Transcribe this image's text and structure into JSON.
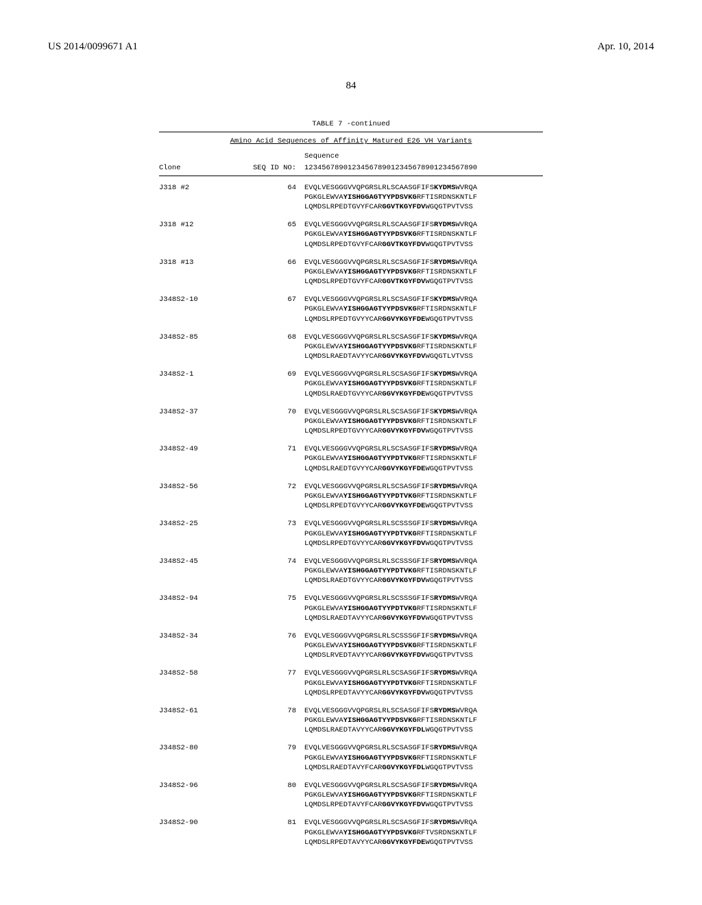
{
  "header": {
    "publication_number": "US 2014/0099671 A1",
    "publication_date": "Apr. 10, 2014",
    "page_number": "84"
  },
  "table": {
    "caption": "TABLE 7 -continued",
    "subtitle": "Amino Acid Sequences of Affinity Matured E26 VH Variants",
    "columns": {
      "clone": "Clone",
      "seqid": "SEQ ID NO:",
      "seq_label": "Sequence",
      "ruler": "1234567890123456789012345678901234567890"
    },
    "entries": [
      {
        "clone": "J318 #2",
        "seqid": "64",
        "lines": [
          {
            "pre": "EVQLVESGGGVVQPGRSLRLSCAASGFIFS",
            "bold": "KYDMS",
            "post": "WVRQA"
          },
          {
            "pre": "PGKGLEWVA",
            "bold": "YISHGGAGTYYPDSVKG",
            "post": "RFTISRDNSKNTLF"
          },
          {
            "pre": "LQMDSLRPEDTGVYFCAR",
            "bold": "GGVTKGYFDV",
            "post": "WGQGTPVTVSS"
          }
        ]
      },
      {
        "clone": "J318 #12",
        "seqid": "65",
        "lines": [
          {
            "pre": "EVQLVESGGGVVQPGRSLRLSCAASGFIFS",
            "bold": "RYDMS",
            "post": "WVRQA"
          },
          {
            "pre": "PGKGLEWVA",
            "bold": "YISHGGAGTYYPDSVKG",
            "post": "RFTISRDNSKNTLF"
          },
          {
            "pre": "LQMDSLRPEDTGVYFCAR",
            "bold": "GGVTKGYFDV",
            "post": "WGQGTPVTVSS"
          }
        ]
      },
      {
        "clone": "J318 #13",
        "seqid": "66",
        "lines": [
          {
            "pre": "EVQLVESGGGVVQPGRSLRLSCSASGFIFS",
            "bold": "RYDMS",
            "post": "WVRQA"
          },
          {
            "pre": "PGKGLEWVA",
            "bold": "YISHGGAGTYYPDSVKG",
            "post": "RFTISRDNSKNTLF"
          },
          {
            "pre": "LQMDSLRPEDTGVYFCAR",
            "bold": "GGVTKGYFDV",
            "post": "WGQGTPVTVSS"
          }
        ]
      },
      {
        "clone": "J348S2-10",
        "seqid": "67",
        "lines": [
          {
            "pre": "EVQLVESGGGVVQPGRSLRLSCSASGFIFS",
            "bold": "KYDMS",
            "post": "WVRQA"
          },
          {
            "pre": "PGKGLEWVA",
            "bold": "YISHGGAGTYYPDSVKG",
            "post": "RFTISRDNSKNTLF"
          },
          {
            "pre": "LQMDSLRPEDTGVYYCAR",
            "bold": "GGVYKGYFDE",
            "post": "WGQGTPVTVSS"
          }
        ]
      },
      {
        "clone": "J348S2-85",
        "seqid": "68",
        "lines": [
          {
            "pre": "EVQLVESGGGVVQPGRSLRLSCSASGFIFS",
            "bold": "KYDMS",
            "post": "WVRQA"
          },
          {
            "pre": "PGKGLEWVA",
            "bold": "YISHGGAGTYYPDSVKG",
            "post": "RFTISRDNSKNTLF"
          },
          {
            "pre": "LQMDSLRAEDTAVYYCAR",
            "bold": "GGVYKGYFDV",
            "post": "WGQGTLVTVSS"
          }
        ]
      },
      {
        "clone": "J348S2-1",
        "seqid": "69",
        "lines": [
          {
            "pre": "EVQLVESGGGVVQPGRSLRLSCSASGFIFS",
            "bold": "KYDMS",
            "post": "WVRQA"
          },
          {
            "pre": "PGKGLEWVA",
            "bold": "YISHGGAGTYYPDSVKG",
            "post": "RFTISRDNSKNTLF"
          },
          {
            "pre": "LQMDSLRAEDTGVYYCAR",
            "bold": "GGVYKGYFDE",
            "post": "WGQGTPVTVSS"
          }
        ]
      },
      {
        "clone": "J348S2-37",
        "seqid": "70",
        "lines": [
          {
            "pre": "EVQLVESGGGVVQPGRSLRLSCSASGFIFS",
            "bold": "KYDMS",
            "post": "WVRQA"
          },
          {
            "pre": "PGKGLEWVA",
            "bold": "YISHGGAGTYYPDSVKG",
            "post": "RFTISRDNSKNTLF"
          },
          {
            "pre": "LQMDSLRPEDTGVYYCAR",
            "bold": "GGVYKGYFDV",
            "post": "WGQGTPVTVSS"
          }
        ]
      },
      {
        "clone": "J348S2-49",
        "seqid": "71",
        "lines": [
          {
            "pre": "EVQLVESGGGVVQPGRSLRLSCSASGFIFS",
            "bold": "RYDMS",
            "post": "WVRQA"
          },
          {
            "pre": "PGKGLEWVA",
            "bold": "YISHGGAGTYYPDTVKG",
            "post": "RFTISRDNSKNTLF"
          },
          {
            "pre": "LQMDSLRAEDTGVYYCAR",
            "bold": "GGVYKGYFDE",
            "post": "WGQGTPVTVSS"
          }
        ]
      },
      {
        "clone": "J348S2-56",
        "seqid": "72",
        "lines": [
          {
            "pre": "EVQLVESGGGVVQPGRSLRLSCSASGFIFS",
            "bold": "RYDMS",
            "post": "WVRQA"
          },
          {
            "pre": "PGKGLEWVA",
            "bold": "YISHGGAGTYYPDTVKG",
            "post": "RFTISRDNSKNTLF"
          },
          {
            "pre": "LQMDSLRPEDTGVYYCAR",
            "bold": "GGVYKGYFDE",
            "post": "WGQGTPVTVSS"
          }
        ]
      },
      {
        "clone": "J348S2-25",
        "seqid": "73",
        "lines": [
          {
            "pre": "EVQLVESGGGVVQPGRSLRLSCSSSGFIFS",
            "bold": "RYDMS",
            "post": "WVRQA"
          },
          {
            "pre": "PGKGLEWVA",
            "bold": "YISHGGAGTYYPDTVKG",
            "post": "RFTISRDNSKNTLF"
          },
          {
            "pre": "LQMDSLRPEDTGVYYCAR",
            "bold": "GGVYKGYFDV",
            "post": "WGQGTPVTVSS"
          }
        ]
      },
      {
        "clone": "J348S2-45",
        "seqid": "74",
        "lines": [
          {
            "pre": "EVQLVESGGGVVQPGRSLRLSCSSSGFIFS",
            "bold": "RYDMS",
            "post": "WVRQA"
          },
          {
            "pre": "PGKGLEWVA",
            "bold": "YISHGGAGTYYPDTVKG",
            "post": "RFTISRDNSKNTLF"
          },
          {
            "pre": "LQMDSLRAEDTGVYYCAR",
            "bold": "GGVYKGYFDV",
            "post": "WGQGTPVTVSS"
          }
        ]
      },
      {
        "clone": "J348S2-94",
        "seqid": "75",
        "lines": [
          {
            "pre": "EVQLVESGGGVVQPGRSLRLSCSSSGFIFS",
            "bold": "RYDMS",
            "post": "WVRQA"
          },
          {
            "pre": "PGKGLEWVA",
            "bold": "YISHGGAGTYYPDTVKG",
            "post": "RFTISRDNSKNTLF"
          },
          {
            "pre": "LQMDSLRAEDTAVYYCAR",
            "bold": "GGVYKGYFDV",
            "post": "WGQGTPVTVSS"
          }
        ]
      },
      {
        "clone": "J348S2-34",
        "seqid": "76",
        "lines": [
          {
            "pre": "EVQLVESGGGVVQPGRSLRLSCSSSGFIFS",
            "bold": "RYDMS",
            "post": "WVRQA"
          },
          {
            "pre": "PGKGLEWVA",
            "bold": "YISHGGAGTYYPDSVKG",
            "post": "RFTISRDNSKNTLF"
          },
          {
            "pre": "LQMDSLRVEDTAVYYCAR",
            "bold": "GGVYKGYFDV",
            "post": "WGQGTPVTVSS"
          }
        ]
      },
      {
        "clone": "J348S2-58",
        "seqid": "77",
        "lines": [
          {
            "pre": "EVQLVESGGGVVQPGRSLRLSCSASGFIFS",
            "bold": "RYDMS",
            "post": "WVRQA"
          },
          {
            "pre": "PGKGLEWVA",
            "bold": "YISHGGAGTYYPDTVKG",
            "post": "RFTISRDNSKNTLF"
          },
          {
            "pre": "LQMDSLRPEDTAVYYCAR",
            "bold": "GGVYKGYFDV",
            "post": "WGQGTPVTVSS"
          }
        ]
      },
      {
        "clone": "J348S2-61",
        "seqid": "78",
        "lines": [
          {
            "pre": "EVQLVESGGGVVQPGRSLRLSCSASGFIFS",
            "bold": "RYDMS",
            "post": "WVRQA"
          },
          {
            "pre": "PGKGLEWVA",
            "bold": "YISHGGAGTYYPDSVKG",
            "post": "RFTISRDNSKNTLF"
          },
          {
            "pre": "LQMDSLRAEDTAVYYCAR",
            "bold": "GGVYKGYFDL",
            "post": "WGQGTPVTVSS"
          }
        ]
      },
      {
        "clone": "J348S2-80",
        "seqid": "79",
        "lines": [
          {
            "pre": "EVQLVESGGGVVQPGRSLRLSCSASGFIFS",
            "bold": "RYDMS",
            "post": "WVRQA"
          },
          {
            "pre": "PGKGLEWVA",
            "bold": "YISHGGAGTYYPDSVKG",
            "post": "RFTISRDNSKNTLF"
          },
          {
            "pre": "LQMDSLRAEDTAVYFCAR",
            "bold": "GGVYKGYFDL",
            "post": "WGQGTPVTVSS"
          }
        ]
      },
      {
        "clone": "J348S2-96",
        "seqid": "80",
        "lines": [
          {
            "pre": "EVQLVESGGGVVQPGRSLRLSCSASGFIFS",
            "bold": "RYDMS",
            "post": "WVRQA"
          },
          {
            "pre": "PGKGLEWVA",
            "bold": "YISHGGAGTYYPDSVKG",
            "post": "RFTISRDNSKNTLF"
          },
          {
            "pre": "LQMDSLRPEDTAVYFCAR",
            "bold": "GGVYKGYFDV",
            "post": "WGQGTPVTVSS"
          }
        ]
      },
      {
        "clone": "J348S2-90",
        "seqid": "81",
        "lines": [
          {
            "pre": "EVQLVESGGGVVQPGRSLRLSCSASGFIFS",
            "bold": "RYDMS",
            "post": "WVRQA"
          },
          {
            "pre": "PGKGLEWVA",
            "bold": "YISHGGAGTYYPDSVKG",
            "post": "RFTVSRDNSKNTLF"
          },
          {
            "pre": "LQMDSLRPEDTAVYYCAR",
            "bold": "GGVYKGYFDE",
            "post": "WGQGTPVTVSS"
          }
        ]
      }
    ]
  }
}
